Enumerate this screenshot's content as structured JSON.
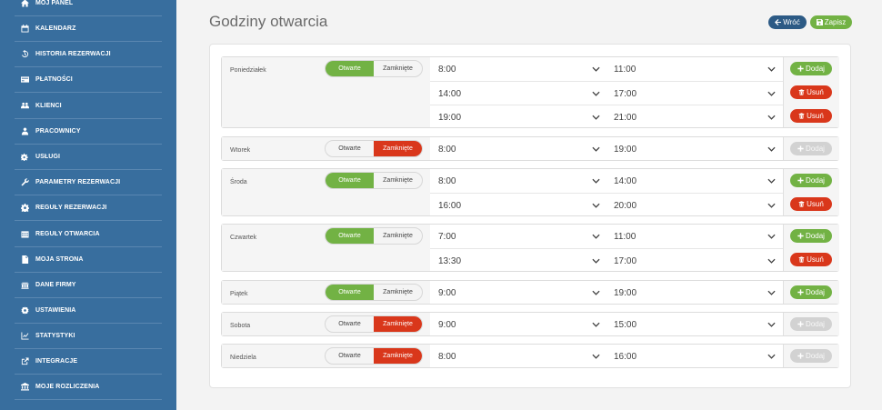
{
  "sidebar": {
    "items": [
      {
        "label": "MÓJ PANEL",
        "icon": "home-icon"
      },
      {
        "label": "KALENDARZ",
        "icon": "calendar-icon"
      },
      {
        "label": "HISTORIA REZERWACJI",
        "icon": "history-icon"
      },
      {
        "label": "PŁATNOŚCI",
        "icon": "credit-card-icon"
      },
      {
        "label": "KLIENCI",
        "icon": "users-icon"
      },
      {
        "label": "PRACOWNICY",
        "icon": "user-icon"
      },
      {
        "label": "USŁUGI",
        "icon": "gears-icon"
      },
      {
        "label": "PARAMETRY REZERWACJI",
        "icon": "wrench-icon"
      },
      {
        "label": "REGUŁY REZERWACJI",
        "icon": "gear-icon"
      },
      {
        "label": "REGUŁY OTWARCIA",
        "icon": "calendar-grid-icon"
      },
      {
        "label": "MOJA STRONA",
        "icon": "file-icon"
      },
      {
        "label": "DANE FIRMY",
        "icon": "bank-icon"
      },
      {
        "label": "USTAWIENIA",
        "icon": "cog-icon"
      },
      {
        "label": "STATYSTYKI",
        "icon": "chart-icon"
      },
      {
        "label": "INTEGRACJE",
        "icon": "external-link-icon"
      },
      {
        "label": "MOJE ROZLICZENIA",
        "icon": "institution-icon"
      }
    ]
  },
  "header": {
    "title": "Godziny otwarcia",
    "back_label": "Wróć",
    "save_label": "Zapisz"
  },
  "labels": {
    "open": "Otwarte",
    "closed": "Zamknięte",
    "add": "Dodaj",
    "remove": "Usuń"
  },
  "colors": {
    "sidebar": "#386e9e",
    "green": "#72b244",
    "red": "#d9371b",
    "navy": "#2c5a85",
    "disabled": "#d2d2d2"
  },
  "days": [
    {
      "name": "Poniedziałek",
      "status": "open",
      "ranges": [
        [
          "8:00",
          "11:00"
        ],
        [
          "14:00",
          "17:00"
        ],
        [
          "19:00",
          "21:00"
        ]
      ]
    },
    {
      "name": "Wtorek",
      "status": "closed",
      "ranges": [
        [
          "8:00",
          "19:00"
        ]
      ]
    },
    {
      "name": "Środa",
      "status": "open",
      "ranges": [
        [
          "8:00",
          "14:00"
        ],
        [
          "16:00",
          "20:00"
        ]
      ]
    },
    {
      "name": "Czwartek",
      "status": "open",
      "ranges": [
        [
          "7:00",
          "11:00"
        ],
        [
          "13:30",
          "17:00"
        ]
      ]
    },
    {
      "name": "Piątek",
      "status": "open",
      "ranges": [
        [
          "9:00",
          "19:00"
        ]
      ]
    },
    {
      "name": "Sobota",
      "status": "closed",
      "ranges": [
        [
          "9:00",
          "15:00"
        ]
      ]
    },
    {
      "name": "Niedziela",
      "status": "closed",
      "ranges": [
        [
          "8:00",
          "16:00"
        ]
      ]
    }
  ]
}
